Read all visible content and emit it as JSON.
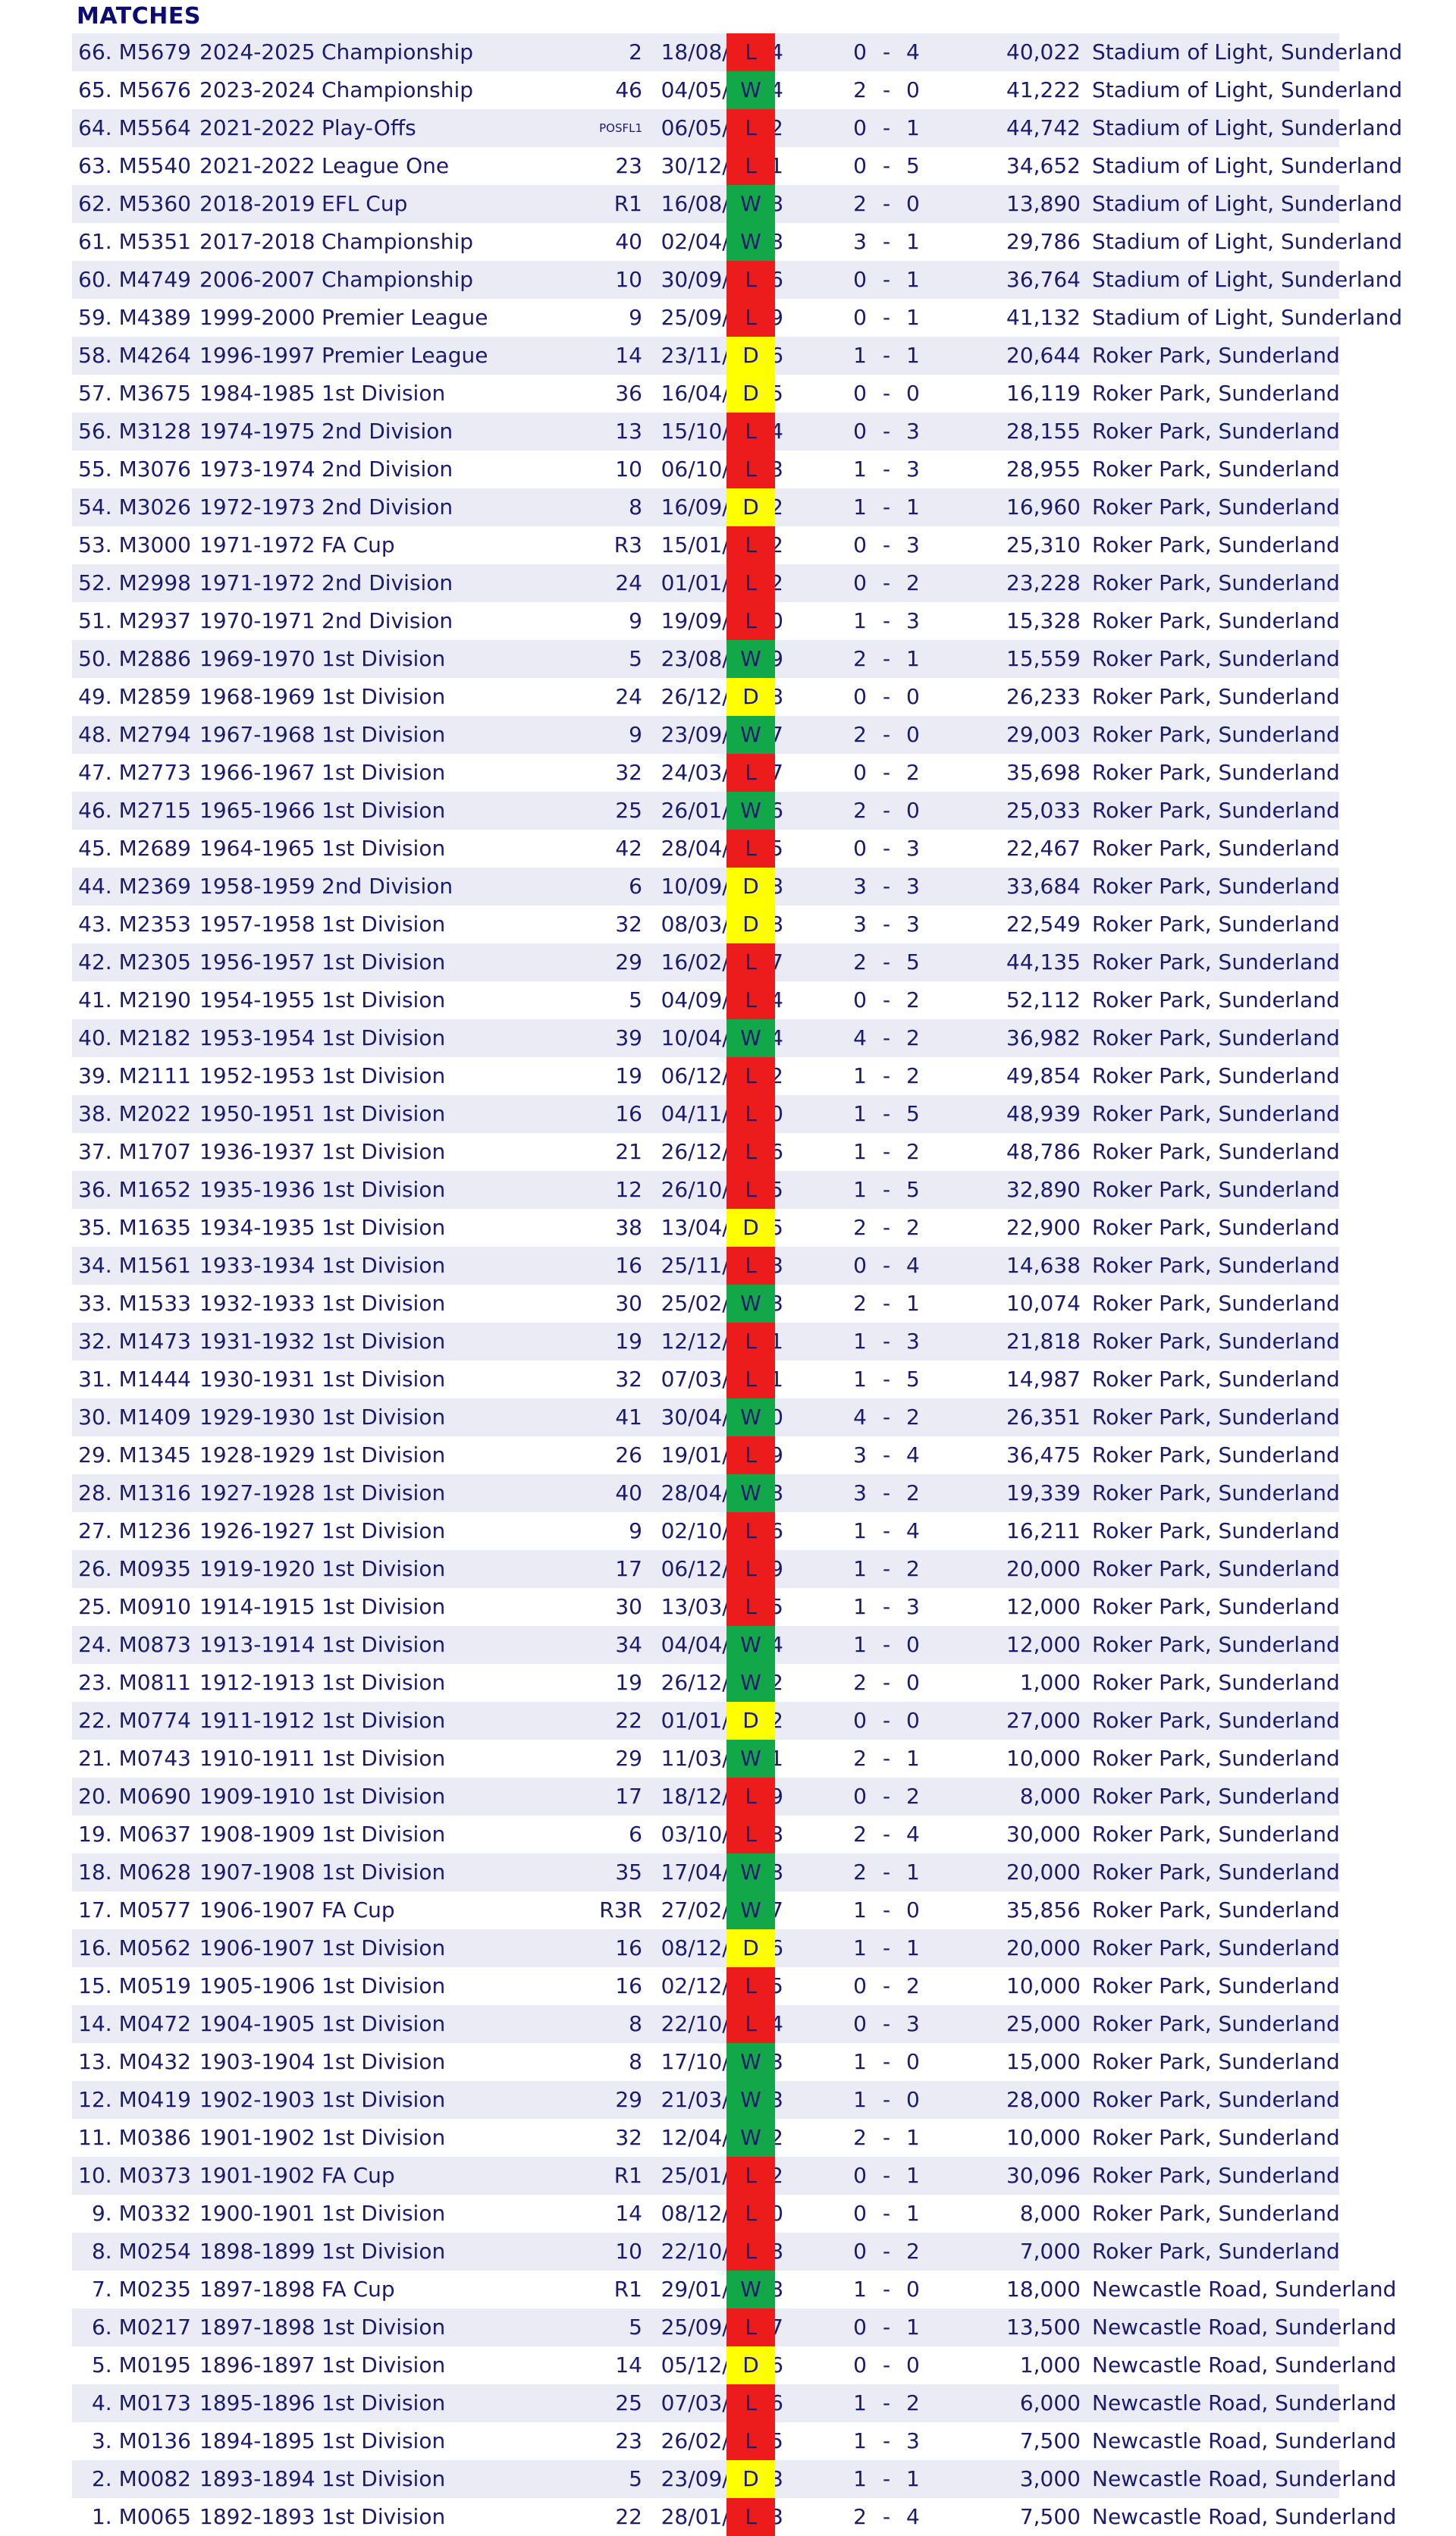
{
  "heading": "MATCHES",
  "matches": [
    {
      "no": "66.",
      "id": "M5679",
      "season": "2024-2025",
      "comp": "Championship",
      "round": "2",
      "date": "18/08/2024",
      "res": "L",
      "hg": "0",
      "ag": "4",
      "att": "40,022",
      "venue": "Stadium of Light, Sunderland"
    },
    {
      "no": "65.",
      "id": "M5676",
      "season": "2023-2024",
      "comp": "Championship",
      "round": "46",
      "date": "04/05/2024",
      "res": "W",
      "hg": "2",
      "ag": "0",
      "att": "41,222",
      "venue": "Stadium of Light, Sunderland"
    },
    {
      "no": "64.",
      "id": "M5564",
      "season": "2021-2022",
      "comp": "Play-Offs",
      "round": "POSFL1",
      "date": "06/05/2022",
      "res": "L",
      "hg": "0",
      "ag": "1",
      "att": "44,742",
      "venue": "Stadium of Light, Sunderland"
    },
    {
      "no": "63.",
      "id": "M5540",
      "season": "2021-2022",
      "comp": "League One",
      "round": "23",
      "date": "30/12/2021",
      "res": "L",
      "hg": "0",
      "ag": "5",
      "att": "34,652",
      "venue": "Stadium of Light, Sunderland"
    },
    {
      "no": "62.",
      "id": "M5360",
      "season": "2018-2019",
      "comp": "EFL Cup",
      "round": "R1",
      "date": "16/08/2018",
      "res": "W",
      "hg": "2",
      "ag": "0",
      "att": "13,890",
      "venue": "Stadium of Light, Sunderland"
    },
    {
      "no": "61.",
      "id": "M5351",
      "season": "2017-2018",
      "comp": "Championship",
      "round": "40",
      "date": "02/04/2018",
      "res": "W",
      "hg": "3",
      "ag": "1",
      "att": "29,786",
      "venue": "Stadium of Light, Sunderland"
    },
    {
      "no": "60.",
      "id": "M4749",
      "season": "2006-2007",
      "comp": "Championship",
      "round": "10",
      "date": "30/09/2006",
      "res": "L",
      "hg": "0",
      "ag": "1",
      "att": "36,764",
      "venue": "Stadium of Light, Sunderland"
    },
    {
      "no": "59.",
      "id": "M4389",
      "season": "1999-2000",
      "comp": "Premier League",
      "round": "9",
      "date": "25/09/1999",
      "res": "L",
      "hg": "0",
      "ag": "1",
      "att": "41,132",
      "venue": "Stadium of Light, Sunderland"
    },
    {
      "no": "58.",
      "id": "M4264",
      "season": "1996-1997",
      "comp": "Premier League",
      "round": "14",
      "date": "23/11/1996",
      "res": "D",
      "hg": "1",
      "ag": "1",
      "att": "20,644",
      "venue": "Roker Park, Sunderland"
    },
    {
      "no": "57.",
      "id": "M3675",
      "season": "1984-1985",
      "comp": "1st Division",
      "round": "36",
      "date": "16/04/1985",
      "res": "D",
      "hg": "0",
      "ag": "0",
      "att": "16,119",
      "venue": "Roker Park, Sunderland"
    },
    {
      "no": "56.",
      "id": "M3128",
      "season": "1974-1975",
      "comp": "2nd Division",
      "round": "13",
      "date": "15/10/1974",
      "res": "L",
      "hg": "0",
      "ag": "3",
      "att": "28,155",
      "venue": "Roker Park, Sunderland"
    },
    {
      "no": "55.",
      "id": "M3076",
      "season": "1973-1974",
      "comp": "2nd Division",
      "round": "10",
      "date": "06/10/1973",
      "res": "L",
      "hg": "1",
      "ag": "3",
      "att": "28,955",
      "venue": "Roker Park, Sunderland"
    },
    {
      "no": "54.",
      "id": "M3026",
      "season": "1972-1973",
      "comp": "2nd Division",
      "round": "8",
      "date": "16/09/1972",
      "res": "D",
      "hg": "1",
      "ag": "1",
      "att": "16,960",
      "venue": "Roker Park, Sunderland"
    },
    {
      "no": "53.",
      "id": "M3000",
      "season": "1971-1972",
      "comp": "FA Cup",
      "round": "R3",
      "date": "15/01/1972",
      "res": "L",
      "hg": "0",
      "ag": "3",
      "att": "25,310",
      "venue": "Roker Park, Sunderland"
    },
    {
      "no": "52.",
      "id": "M2998",
      "season": "1971-1972",
      "comp": "2nd Division",
      "round": "24",
      "date": "01/01/1972",
      "res": "L",
      "hg": "0",
      "ag": "2",
      "att": "23,228",
      "venue": "Roker Park, Sunderland"
    },
    {
      "no": "51.",
      "id": "M2937",
      "season": "1970-1971",
      "comp": "2nd Division",
      "round": "9",
      "date": "19/09/1970",
      "res": "L",
      "hg": "1",
      "ag": "3",
      "att": "15,328",
      "venue": "Roker Park, Sunderland"
    },
    {
      "no": "50.",
      "id": "M2886",
      "season": "1969-1970",
      "comp": "1st Division",
      "round": "5",
      "date": "23/08/1969",
      "res": "W",
      "hg": "2",
      "ag": "1",
      "att": "15,559",
      "venue": "Roker Park, Sunderland"
    },
    {
      "no": "49.",
      "id": "M2859",
      "season": "1968-1969",
      "comp": "1st Division",
      "round": "24",
      "date": "26/12/1968",
      "res": "D",
      "hg": "0",
      "ag": "0",
      "att": "26,233",
      "venue": "Roker Park, Sunderland"
    },
    {
      "no": "48.",
      "id": "M2794",
      "season": "1967-1968",
      "comp": "1st Division",
      "round": "9",
      "date": "23/09/1967",
      "res": "W",
      "hg": "2",
      "ag": "0",
      "att": "29,003",
      "venue": "Roker Park, Sunderland"
    },
    {
      "no": "47.",
      "id": "M2773",
      "season": "1966-1967",
      "comp": "1st Division",
      "round": "32",
      "date": "24/03/1967",
      "res": "L",
      "hg": "0",
      "ag": "2",
      "att": "35,698",
      "venue": "Roker Park, Sunderland"
    },
    {
      "no": "46.",
      "id": "M2715",
      "season": "1965-1966",
      "comp": "1st Division",
      "round": "25",
      "date": "26/01/1966",
      "res": "W",
      "hg": "2",
      "ag": "0",
      "att": "25,033",
      "venue": "Roker Park, Sunderland"
    },
    {
      "no": "45.",
      "id": "M2689",
      "season": "1964-1965",
      "comp": "1st Division",
      "round": "42",
      "date": "28/04/1965",
      "res": "L",
      "hg": "0",
      "ag": "3",
      "att": "22,467",
      "venue": "Roker Park, Sunderland"
    },
    {
      "no": "44.",
      "id": "M2369",
      "season": "1958-1959",
      "comp": "2nd Division",
      "round": "6",
      "date": "10/09/1958",
      "res": "D",
      "hg": "3",
      "ag": "3",
      "att": "33,684",
      "venue": "Roker Park, Sunderland"
    },
    {
      "no": "43.",
      "id": "M2353",
      "season": "1957-1958",
      "comp": "1st Division",
      "round": "32",
      "date": "08/03/1958",
      "res": "D",
      "hg": "3",
      "ag": "3",
      "att": "22,549",
      "venue": "Roker Park, Sunderland"
    },
    {
      "no": "42.",
      "id": "M2305",
      "season": "1956-1957",
      "comp": "1st Division",
      "round": "29",
      "date": "16/02/1957",
      "res": "L",
      "hg": "2",
      "ag": "5",
      "att": "44,135",
      "venue": "Roker Park, Sunderland"
    },
    {
      "no": "41.",
      "id": "M2190",
      "season": "1954-1955",
      "comp": "1st Division",
      "round": "5",
      "date": "04/09/1954",
      "res": "L",
      "hg": "0",
      "ag": "2",
      "att": "52,112",
      "venue": "Roker Park, Sunderland"
    },
    {
      "no": "40.",
      "id": "M2182",
      "season": "1953-1954",
      "comp": "1st Division",
      "round": "39",
      "date": "10/04/1954",
      "res": "W",
      "hg": "4",
      "ag": "2",
      "att": "36,982",
      "venue": "Roker Park, Sunderland"
    },
    {
      "no": "39.",
      "id": "M2111",
      "season": "1952-1953",
      "comp": "1st Division",
      "round": "19",
      "date": "06/12/1952",
      "res": "L",
      "hg": "1",
      "ag": "2",
      "att": "49,854",
      "venue": "Roker Park, Sunderland"
    },
    {
      "no": "38.",
      "id": "M2022",
      "season": "1950-1951",
      "comp": "1st Division",
      "round": "16",
      "date": "04/11/1950",
      "res": "L",
      "hg": "1",
      "ag": "5",
      "att": "48,939",
      "venue": "Roker Park, Sunderland"
    },
    {
      "no": "37.",
      "id": "M1707",
      "season": "1936-1937",
      "comp": "1st Division",
      "round": "21",
      "date": "26/12/1936",
      "res": "L",
      "hg": "1",
      "ag": "2",
      "att": "48,786",
      "venue": "Roker Park, Sunderland"
    },
    {
      "no": "36.",
      "id": "M1652",
      "season": "1935-1936",
      "comp": "1st Division",
      "round": "12",
      "date": "26/10/1935",
      "res": "L",
      "hg": "1",
      "ag": "5",
      "att": "32,890",
      "venue": "Roker Park, Sunderland"
    },
    {
      "no": "35.",
      "id": "M1635",
      "season": "1934-1935",
      "comp": "1st Division",
      "round": "38",
      "date": "13/04/1935",
      "res": "D",
      "hg": "2",
      "ag": "2",
      "att": "22,900",
      "venue": "Roker Park, Sunderland"
    },
    {
      "no": "34.",
      "id": "M1561",
      "season": "1933-1934",
      "comp": "1st Division",
      "round": "16",
      "date": "25/11/1933",
      "res": "L",
      "hg": "0",
      "ag": "4",
      "att": "14,638",
      "venue": "Roker Park, Sunderland"
    },
    {
      "no": "33.",
      "id": "M1533",
      "season": "1932-1933",
      "comp": "1st Division",
      "round": "30",
      "date": "25/02/1933",
      "res": "W",
      "hg": "2",
      "ag": "1",
      "att": "10,074",
      "venue": "Roker Park, Sunderland"
    },
    {
      "no": "32.",
      "id": "M1473",
      "season": "1931-1932",
      "comp": "1st Division",
      "round": "19",
      "date": "12/12/1931",
      "res": "L",
      "hg": "1",
      "ag": "3",
      "att": "21,818",
      "venue": "Roker Park, Sunderland"
    },
    {
      "no": "31.",
      "id": "M1444",
      "season": "1930-1931",
      "comp": "1st Division",
      "round": "32",
      "date": "07/03/1931",
      "res": "L",
      "hg": "1",
      "ag": "5",
      "att": "14,987",
      "venue": "Roker Park, Sunderland"
    },
    {
      "no": "30.",
      "id": "M1409",
      "season": "1929-1930",
      "comp": "1st Division",
      "round": "41",
      "date": "30/04/1930",
      "res": "W",
      "hg": "4",
      "ag": "2",
      "att": "26,351",
      "venue": "Roker Park, Sunderland"
    },
    {
      "no": "29.",
      "id": "M1345",
      "season": "1928-1929",
      "comp": "1st Division",
      "round": "26",
      "date": "19/01/1929",
      "res": "L",
      "hg": "3",
      "ag": "4",
      "att": "36,475",
      "venue": "Roker Park, Sunderland"
    },
    {
      "no": "28.",
      "id": "M1316",
      "season": "1927-1928",
      "comp": "1st Division",
      "round": "40",
      "date": "28/04/1928",
      "res": "W",
      "hg": "3",
      "ag": "2",
      "att": "19,339",
      "venue": "Roker Park, Sunderland"
    },
    {
      "no": "27.",
      "id": "M1236",
      "season": "1926-1927",
      "comp": "1st Division",
      "round": "9",
      "date": "02/10/1926",
      "res": "L",
      "hg": "1",
      "ag": "4",
      "att": "16,211",
      "venue": "Roker Park, Sunderland"
    },
    {
      "no": "26.",
      "id": "M0935",
      "season": "1919-1920",
      "comp": "1st Division",
      "round": "17",
      "date": "06/12/1919",
      "res": "L",
      "hg": "1",
      "ag": "2",
      "att": "20,000",
      "venue": "Roker Park, Sunderland"
    },
    {
      "no": "25.",
      "id": "M0910",
      "season": "1914-1915",
      "comp": "1st Division",
      "round": "30",
      "date": "13/03/1915",
      "res": "L",
      "hg": "1",
      "ag": "3",
      "att": "12,000",
      "venue": "Roker Park, Sunderland"
    },
    {
      "no": "24.",
      "id": "M0873",
      "season": "1913-1914",
      "comp": "1st Division",
      "round": "34",
      "date": "04/04/1914",
      "res": "W",
      "hg": "1",
      "ag": "0",
      "att": "12,000",
      "venue": "Roker Park, Sunderland"
    },
    {
      "no": "23.",
      "id": "M0811",
      "season": "1912-1913",
      "comp": "1st Division",
      "round": "19",
      "date": "26/12/1912",
      "res": "W",
      "hg": "2",
      "ag": "0",
      "att": "1,000",
      "venue": "Roker Park, Sunderland"
    },
    {
      "no": "22.",
      "id": "M0774",
      "season": "1911-1912",
      "comp": "1st Division",
      "round": "22",
      "date": "01/01/1912",
      "res": "D",
      "hg": "0",
      "ag": "0",
      "att": "27,000",
      "venue": "Roker Park, Sunderland"
    },
    {
      "no": "21.",
      "id": "M0743",
      "season": "1910-1911",
      "comp": "1st Division",
      "round": "29",
      "date": "11/03/1911",
      "res": "W",
      "hg": "2",
      "ag": "1",
      "att": "10,000",
      "venue": "Roker Park, Sunderland"
    },
    {
      "no": "20.",
      "id": "M0690",
      "season": "1909-1910",
      "comp": "1st Division",
      "round": "17",
      "date": "18/12/1909",
      "res": "L",
      "hg": "0",
      "ag": "2",
      "att": "8,000",
      "venue": "Roker Park, Sunderland"
    },
    {
      "no": "19.",
      "id": "M0637",
      "season": "1908-1909",
      "comp": "1st Division",
      "round": "6",
      "date": "03/10/1908",
      "res": "L",
      "hg": "2",
      "ag": "4",
      "att": "30,000",
      "venue": "Roker Park, Sunderland"
    },
    {
      "no": "18.",
      "id": "M0628",
      "season": "1907-1908",
      "comp": "1st Division",
      "round": "35",
      "date": "17/04/1908",
      "res": "W",
      "hg": "2",
      "ag": "1",
      "att": "20,000",
      "venue": "Roker Park, Sunderland"
    },
    {
      "no": "17.",
      "id": "M0577",
      "season": "1906-1907",
      "comp": "FA Cup",
      "round": "R3R",
      "date": "27/02/1907",
      "res": "W",
      "hg": "1",
      "ag": "0",
      "att": "35,856",
      "venue": "Roker Park, Sunderland"
    },
    {
      "no": "16.",
      "id": "M0562",
      "season": "1906-1907",
      "comp": "1st Division",
      "round": "16",
      "date": "08/12/1906",
      "res": "D",
      "hg": "1",
      "ag": "1",
      "att": "20,000",
      "venue": "Roker Park, Sunderland"
    },
    {
      "no": "15.",
      "id": "M0519",
      "season": "1905-1906",
      "comp": "1st Division",
      "round": "16",
      "date": "02/12/1905",
      "res": "L",
      "hg": "0",
      "ag": "2",
      "att": "10,000",
      "venue": "Roker Park, Sunderland"
    },
    {
      "no": "14.",
      "id": "M0472",
      "season": "1904-1905",
      "comp": "1st Division",
      "round": "8",
      "date": "22/10/1904",
      "res": "L",
      "hg": "0",
      "ag": "3",
      "att": "25,000",
      "venue": "Roker Park, Sunderland"
    },
    {
      "no": "13.",
      "id": "M0432",
      "season": "1903-1904",
      "comp": "1st Division",
      "round": "8",
      "date": "17/10/1903",
      "res": "W",
      "hg": "1",
      "ag": "0",
      "att": "15,000",
      "venue": "Roker Park, Sunderland"
    },
    {
      "no": "12.",
      "id": "M0419",
      "season": "1902-1903",
      "comp": "1st Division",
      "round": "29",
      "date": "21/03/1903",
      "res": "W",
      "hg": "1",
      "ag": "0",
      "att": "28,000",
      "venue": "Roker Park, Sunderland"
    },
    {
      "no": "11.",
      "id": "M0386",
      "season": "1901-1902",
      "comp": "1st Division",
      "round": "32",
      "date": "12/04/1902",
      "res": "W",
      "hg": "2",
      "ag": "1",
      "att": "10,000",
      "venue": "Roker Park, Sunderland"
    },
    {
      "no": "10.",
      "id": "M0373",
      "season": "1901-1902",
      "comp": "FA Cup",
      "round": "R1",
      "date": "25/01/1902",
      "res": "L",
      "hg": "0",
      "ag": "1",
      "att": "30,096",
      "venue": "Roker Park, Sunderland"
    },
    {
      "no": "9.",
      "id": "M0332",
      "season": "1900-1901",
      "comp": "1st Division",
      "round": "14",
      "date": "08/12/1900",
      "res": "L",
      "hg": "0",
      "ag": "1",
      "att": "8,000",
      "venue": "Roker Park, Sunderland"
    },
    {
      "no": "8.",
      "id": "M0254",
      "season": "1898-1899",
      "comp": "1st Division",
      "round": "10",
      "date": "22/10/1898",
      "res": "L",
      "hg": "0",
      "ag": "2",
      "att": "7,000",
      "venue": "Roker Park, Sunderland"
    },
    {
      "no": "7.",
      "id": "M0235",
      "season": "1897-1898",
      "comp": "FA Cup",
      "round": "R1",
      "date": "29/01/1898",
      "res": "W",
      "hg": "1",
      "ag": "0",
      "att": "18,000",
      "venue": "Newcastle Road, Sunderland"
    },
    {
      "no": "6.",
      "id": "M0217",
      "season": "1897-1898",
      "comp": "1st Division",
      "round": "5",
      "date": "25/09/1897",
      "res": "L",
      "hg": "0",
      "ag": "1",
      "att": "13,500",
      "venue": "Newcastle Road, Sunderland"
    },
    {
      "no": "5.",
      "id": "M0195",
      "season": "1896-1897",
      "comp": "1st Division",
      "round": "14",
      "date": "05/12/1896",
      "res": "D",
      "hg": "0",
      "ag": "0",
      "att": "1,000",
      "venue": "Newcastle Road, Sunderland"
    },
    {
      "no": "4.",
      "id": "M0173",
      "season": "1895-1896",
      "comp": "1st Division",
      "round": "25",
      "date": "07/03/1896",
      "res": "L",
      "hg": "1",
      "ag": "2",
      "att": "6,000",
      "venue": "Newcastle Road, Sunderland"
    },
    {
      "no": "3.",
      "id": "M0136",
      "season": "1894-1895",
      "comp": "1st Division",
      "round": "23",
      "date": "26/02/1895",
      "res": "L",
      "hg": "1",
      "ag": "3",
      "att": "7,500",
      "venue": "Newcastle Road, Sunderland"
    },
    {
      "no": "2.",
      "id": "M0082",
      "season": "1893-1894",
      "comp": "1st Division",
      "round": "5",
      "date": "23/09/1893",
      "res": "D",
      "hg": "1",
      "ag": "1",
      "att": "3,000",
      "venue": "Newcastle Road, Sunderland"
    },
    {
      "no": "1.",
      "id": "M0065",
      "season": "1892-1893",
      "comp": "1st Division",
      "round": "22",
      "date": "28/01/1893",
      "res": "L",
      "hg": "2",
      "ag": "4",
      "att": "7,500",
      "venue": "Newcastle Road, Sunderland"
    }
  ],
  "colors": {
    "result_loss": "#ed1c1c",
    "result_win": "#12a84a",
    "result_draw": "#ffff00",
    "row_alt": "#ebebf6",
    "text": "#1b1b6e"
  }
}
